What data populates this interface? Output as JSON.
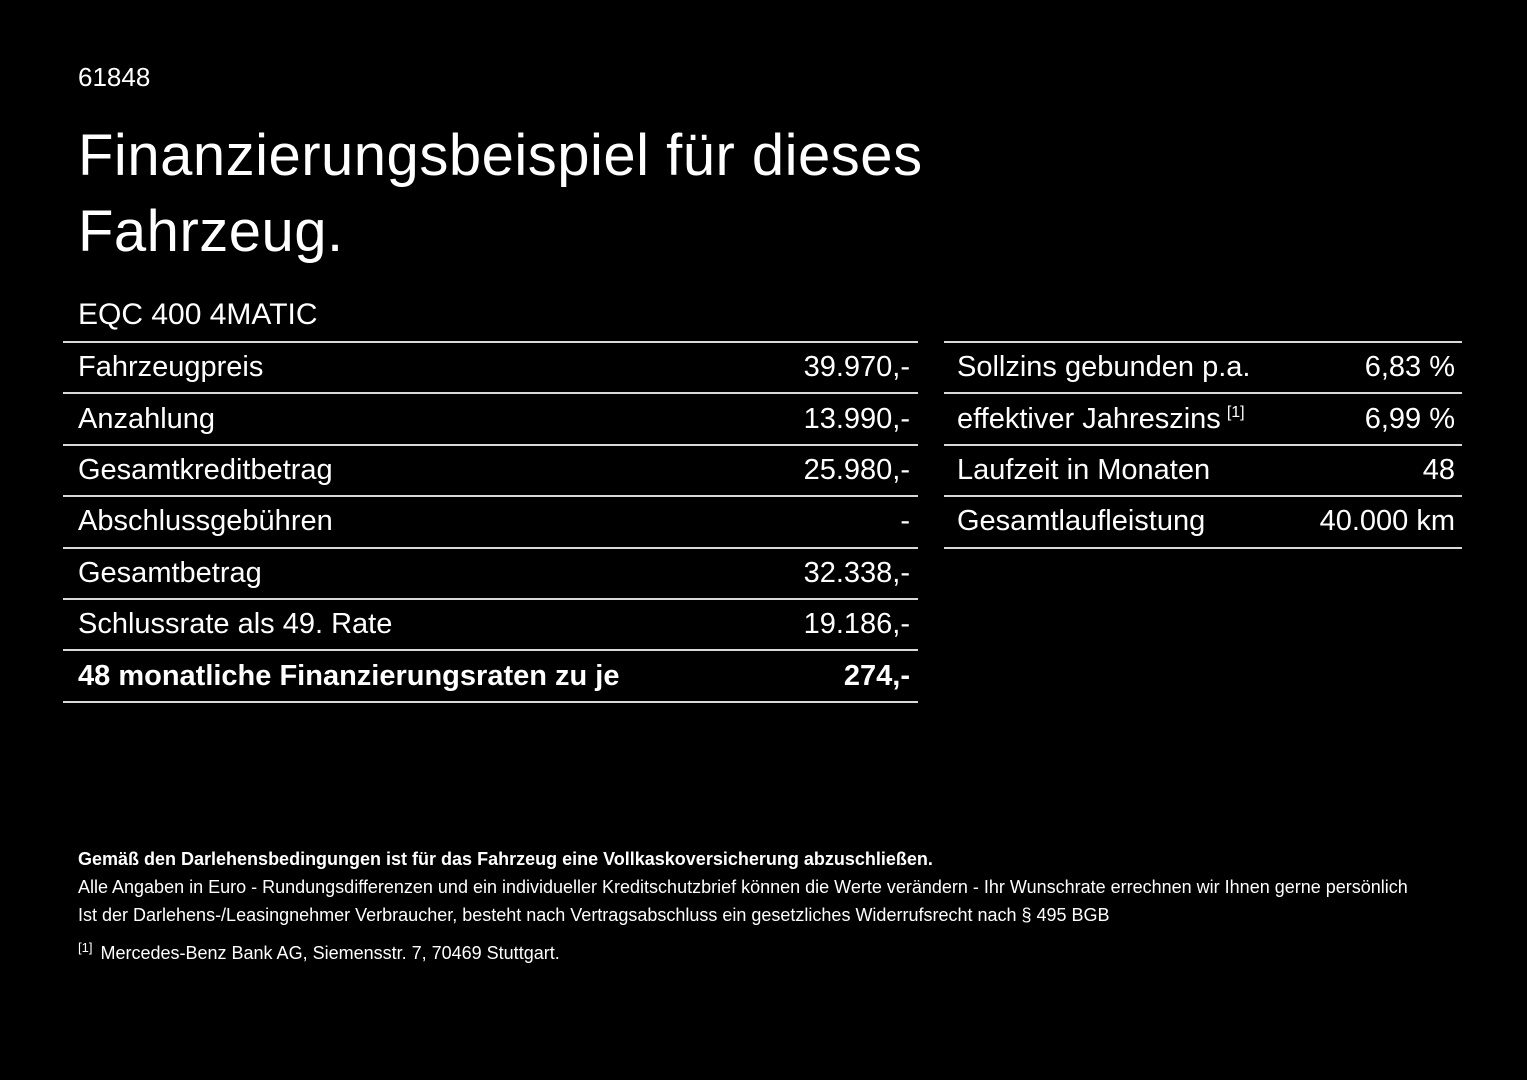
{
  "page": {
    "id": "61848",
    "title_line1": "Finanzierungsbeispiel für dieses",
    "title_line2": "Fahrzeug.",
    "model": "EQC 400 4MATIC"
  },
  "left_table": {
    "rows": [
      {
        "label": "Fahrzeugpreis",
        "value": "39.970,-"
      },
      {
        "label": "Anzahlung",
        "value": "13.990,-"
      },
      {
        "label": "Gesamtkreditbetrag",
        "value": "25.980,-"
      },
      {
        "label": "Abschlussgebühren",
        "value": "-"
      },
      {
        "label": "Gesamtbetrag",
        "value": "32.338,-"
      },
      {
        "label": "Schlussrate als 49. Rate",
        "value": "19.186,-"
      },
      {
        "label": "48 monatliche Finanzierungsraten zu je",
        "value": "274,-"
      }
    ]
  },
  "right_table": {
    "rows": [
      {
        "label": "Sollzins gebunden p.a.",
        "marker": "",
        "value": "6,83 %"
      },
      {
        "label": "effektiver Jahreszins",
        "marker": "[1]",
        "value": "6,99 %"
      },
      {
        "label": "Laufzeit in Monaten",
        "marker": "",
        "value": "48"
      },
      {
        "label": "Gesamtlaufleistung",
        "marker": "",
        "value": "40.000 km"
      }
    ]
  },
  "footer": {
    "bold_note": "Gemäß den Darlehensbedingungen ist für das Fahrzeug eine Vollkaskoversicherung abzuschließen.",
    "note1": "Alle Angaben in Euro - Rundungsdifferenzen und ein individueller Kreditschutzbrief können die Werte verändern - Ihr Wunschrate errechnen wir Ihnen gerne persönlich",
    "note2": "Ist der Darlehens-/Leasingnehmer Verbraucher, besteht nach Vertragsabschluss ein gesetzliches Widerrufsrecht nach § 495 BGB",
    "footnote_marker": "[1]",
    "footnote_text": "Mercedes-Benz Bank AG, Siemensstr. 7, 70469 Stuttgart."
  },
  "colors": {
    "background": "#000000",
    "text": "#ffffff",
    "divider": "#d9d9d9"
  }
}
